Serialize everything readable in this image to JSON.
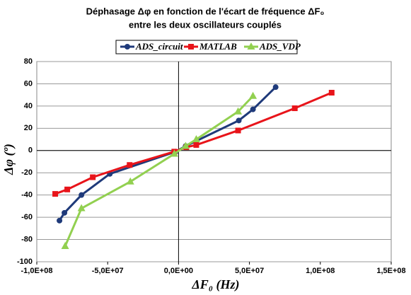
{
  "chart_data": {
    "type": "line",
    "title": [
      "Déphasage Δφ en fonction de l'écart de fréquence ΔF₀",
      "entre les deux oscillateurs couplés"
    ],
    "xlabel": "ΔF₀ (Hz)",
    "ylabel": "Δφ (º)",
    "xlim": [
      -100000000,
      150000000
    ],
    "xticks": [
      {
        "value": -100000000,
        "label": "-1,0E+08"
      },
      {
        "value": -50000000,
        "label": "-5,0E+07"
      },
      {
        "value": 0,
        "label": "0,0E+00"
      },
      {
        "value": 50000000,
        "label": "5,0E+07"
      },
      {
        "value": 100000000,
        "label": "1,0E+08"
      },
      {
        "value": 150000000,
        "label": "1,5E+08"
      }
    ],
    "ylim": [
      -100,
      80
    ],
    "yticks": [
      -100,
      -80,
      -60,
      -40,
      -20,
      0,
      20,
      40,
      60,
      80
    ],
    "grid": true,
    "legend": "top",
    "series": [
      {
        "name": "ADS_circuit",
        "color": "#1f3a7a",
        "marker": "circle",
        "x": [
          -84000000,
          -80500000,
          -68500000,
          -48500000,
          -2000000,
          5000000,
          42500000,
          52500000,
          68500000
        ],
        "values": [
          -63,
          -56,
          -40,
          -21,
          -1,
          4,
          27,
          37,
          57
        ]
      },
      {
        "name": "MATLAB",
        "color": "#e8141a",
        "marker": "square",
        "x": [
          -87000000,
          -78500000,
          -60500000,
          -34500000,
          -3000000,
          5500000,
          12500000,
          42000000,
          82000000,
          108000000
        ],
        "values": [
          -39,
          -35,
          -24,
          -13,
          -1,
          3,
          5,
          18,
          38,
          52
        ]
      },
      {
        "name": "ADS_VDP",
        "color": "#92d050",
        "marker": "triangle",
        "x": [
          -80000000,
          -68500000,
          -34000000,
          -3000000,
          5000000,
          12500000,
          42000000,
          52500000
        ],
        "values": [
          -86,
          -52,
          -28,
          -3,
          4,
          10,
          35,
          49
        ]
      }
    ]
  }
}
